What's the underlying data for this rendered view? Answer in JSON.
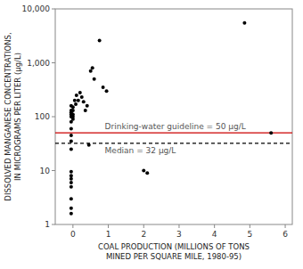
{
  "chart_data": {
    "type": "scatter",
    "x": [
      -0.05,
      -0.05,
      -0.05,
      -0.05,
      -0.05,
      -0.05,
      -0.05,
      -0.05,
      -0.05,
      -0.05,
      -0.05,
      -0.05,
      -0.05,
      -0.05,
      -0.05,
      -0.05,
      -0.05,
      -0.05,
      0.0,
      0.0,
      0.0,
      0.0,
      0.0,
      0.05,
      0.08,
      0.1,
      0.15,
      0.2,
      0.25,
      0.3,
      0.35,
      0.4,
      0.45,
      0.5,
      0.55,
      0.6,
      0.75,
      0.85,
      0.95,
      2.0,
      2.1,
      4.85,
      5.6
    ],
    "values": [
      1.6,
      2.0,
      3.0,
      5.0,
      6.0,
      7.0,
      8.0,
      9.5,
      25.0,
      35.0,
      45.0,
      60.0,
      80.0,
      100.0,
      110.0,
      120.0,
      130.0,
      160.0,
      90.0,
      100.0,
      110.0,
      130.0,
      150.0,
      200.0,
      170.0,
      250.0,
      200.0,
      280.0,
      230.0,
      190.0,
      130.0,
      160.0,
      30.0,
      700.0,
      800.0,
      500.0,
      2600.0,
      350.0,
      300.0,
      10.0,
      9.0,
      5500.0,
      50.0
    ],
    "color": "#000000",
    "xlabel": "COAL PRODUCTION (MILLIONS OF TONS\nMINED PER SQUARE MILE, 1980-95)",
    "ylabel": "DISSOLVED MANGANESE CONCENTRATIONS,\nIN MICROGRAMS PER LITER (µg/L)",
    "log": "y",
    "grid": false,
    "xlim": [
      -0.5,
      6.2
    ],
    "ylim": [
      1,
      10000
    ],
    "xticks": [
      0,
      1,
      2,
      3,
      4,
      5,
      6
    ],
    "yticks": [
      1,
      10,
      100,
      {
        "value": 1000,
        "label": "1,000"
      },
      {
        "value": 10000,
        "label": "10,000"
      }
    ],
    "annotations": [
      {
        "text": "Drinking-water guideline = 50 µg/L",
        "x": 0.9,
        "y": 50,
        "color": "#cc0000",
        "line_style": "solid"
      },
      {
        "text": "Median = 32 µg/L",
        "x": 0.9,
        "y": 32,
        "color": "#000000",
        "line_style": "dashed"
      }
    ]
  }
}
